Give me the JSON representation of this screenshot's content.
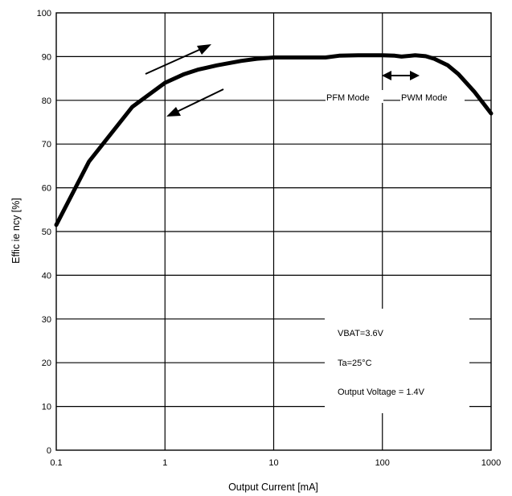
{
  "chart_data": {
    "type": "line",
    "title": "",
    "xlabel": "Output Current [mA]",
    "ylabel": "Effic ie ncy [%]",
    "x_scale": "log",
    "xlim": [
      0.1,
      1000
    ],
    "ylim": [
      0,
      100
    ],
    "x_ticks": [
      {
        "value": 0.1,
        "label": "0.1"
      },
      {
        "value": 1,
        "label": "1"
      },
      {
        "value": 10,
        "label": "10"
      },
      {
        "value": 100,
        "label": "100"
      },
      {
        "value": 1000,
        "label": "1000"
      }
    ],
    "y_ticks": [
      0,
      10,
      20,
      30,
      40,
      50,
      60,
      70,
      80,
      90,
      100
    ],
    "grid": true,
    "series": [
      {
        "x": [
          0.1,
          0.2,
          0.5,
          1,
          1.5,
          2,
          3,
          5,
          7,
          10,
          20,
          30,
          40,
          60,
          100,
          130,
          150,
          200,
          250,
          300,
          400,
          500,
          700,
          1000
        ],
        "y": [
          51.5,
          66,
          78.5,
          84,
          86,
          87,
          88,
          89,
          89.5,
          89.8,
          89.8,
          89.8,
          90.2,
          90.3,
          90.3,
          90.2,
          90.0,
          90.3,
          90.1,
          89.5,
          88,
          86,
          82,
          77
        ],
        "color": "#000000"
      }
    ],
    "annotations": {
      "pfm_label": "PFM Mode",
      "pwm_label": "PWM Mode",
      "conditions": [
        "VBAT=3.6V",
        "Ta=25°C",
        "Output Voltage = 1.4V"
      ]
    }
  }
}
